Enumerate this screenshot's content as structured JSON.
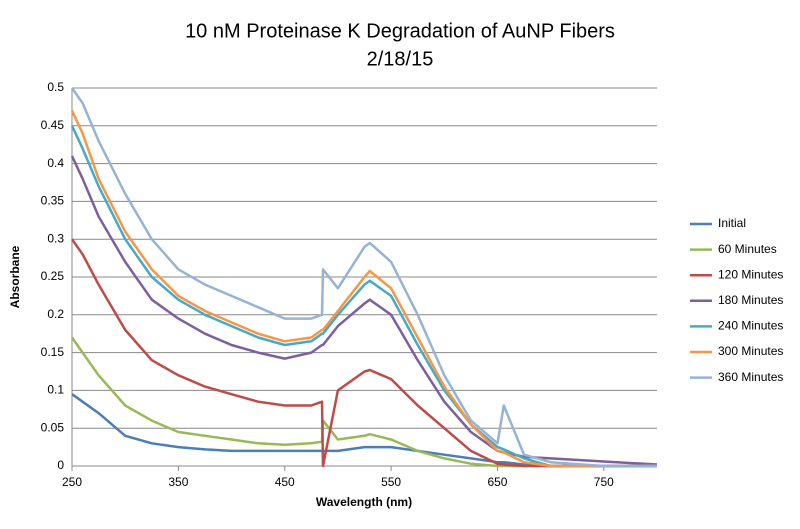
{
  "chart_data": {
    "type": "line",
    "title": "10 nM Proteinase K Degradation of AuNP Fibers",
    "subtitle": "2/18/15",
    "x_label": "Wavelength (nm)",
    "y_label": "Absorbane",
    "x": [
      250,
      260,
      275,
      300,
      325,
      350,
      375,
      400,
      425,
      450,
      475,
      485,
      486,
      500,
      525,
      530,
      550,
      575,
      600,
      625,
      650,
      656,
      675,
      700,
      750,
      800
    ],
    "series": [
      {
        "name": "Initial",
        "color": "#4a7ebb",
        "values": [
          0.095,
          0.085,
          0.07,
          0.04,
          0.03,
          0.025,
          0.022,
          0.02,
          0.02,
          0.02,
          0.02,
          0.02,
          0.02,
          0.02,
          0.025,
          0.025,
          0.025,
          0.02,
          0.015,
          0.01,
          0.005,
          0.005,
          0.002,
          0,
          0,
          0
        ]
      },
      {
        "name": "60 Minutes",
        "color": "#98b954",
        "values": [
          0.17,
          0.15,
          0.12,
          0.08,
          0.06,
          0.045,
          0.04,
          0.035,
          0.03,
          0.028,
          0.03,
          0.032,
          0.06,
          0.035,
          0.04,
          0.042,
          0.035,
          0.02,
          0.01,
          0.003,
          0,
          0,
          0,
          0,
          0,
          0
        ]
      },
      {
        "name": "120 Minutes",
        "color": "#be4b48",
        "values": [
          0.3,
          0.28,
          0.24,
          0.18,
          0.14,
          0.12,
          0.105,
          0.095,
          0.085,
          0.08,
          0.08,
          0.085,
          0,
          0.1,
          0.125,
          0.127,
          0.115,
          0.08,
          0.05,
          0.02,
          0.003,
          0.002,
          0,
          0,
          0,
          0
        ]
      },
      {
        "name": "180 Minutes",
        "color": "#7d5fa0",
        "values": [
          0.41,
          0.38,
          0.33,
          0.27,
          0.22,
          0.195,
          0.175,
          0.16,
          0.15,
          0.142,
          0.15,
          0.16,
          0.16,
          0.185,
          0.215,
          0.22,
          0.2,
          0.14,
          0.085,
          0.045,
          0.02,
          0.018,
          0.012,
          0.01,
          0.006,
          0.002
        ]
      },
      {
        "name": "240 Minutes",
        "color": "#46aac5",
        "values": [
          0.45,
          0.42,
          0.37,
          0.3,
          0.25,
          0.22,
          0.2,
          0.185,
          0.17,
          0.16,
          0.165,
          0.175,
          0.175,
          0.2,
          0.24,
          0.245,
          0.225,
          0.16,
          0.1,
          0.055,
          0.025,
          0.022,
          0.01,
          0,
          0,
          0
        ]
      },
      {
        "name": "300 Minutes",
        "color": "#f79646",
        "values": [
          0.47,
          0.44,
          0.38,
          0.31,
          0.26,
          0.225,
          0.205,
          0.19,
          0.175,
          0.165,
          0.17,
          0.18,
          0.18,
          0.205,
          0.25,
          0.258,
          0.235,
          0.17,
          0.105,
          0.055,
          0.02,
          0.018,
          0.005,
          0,
          0,
          0
        ]
      },
      {
        "name": "360 Minutes",
        "color": "#95b3d7",
        "values": [
          0.5,
          0.48,
          0.43,
          0.36,
          0.3,
          0.26,
          0.24,
          0.225,
          0.21,
          0.195,
          0.195,
          0.2,
          0.26,
          0.235,
          0.29,
          0.295,
          0.27,
          0.2,
          0.12,
          0.06,
          0.03,
          0.08,
          0.015,
          0.005,
          0,
          0
        ]
      }
    ],
    "xlim": [
      250,
      800
    ],
    "xticks": [
      250,
      350,
      450,
      550,
      650,
      750
    ],
    "ylim": [
      0,
      0.5
    ],
    "yticks": [
      0,
      0.05,
      0.1,
      0.15,
      0.2,
      0.25,
      0.3,
      0.35,
      0.4,
      0.45,
      0.5
    ],
    "grid": true,
    "legend": "right"
  }
}
